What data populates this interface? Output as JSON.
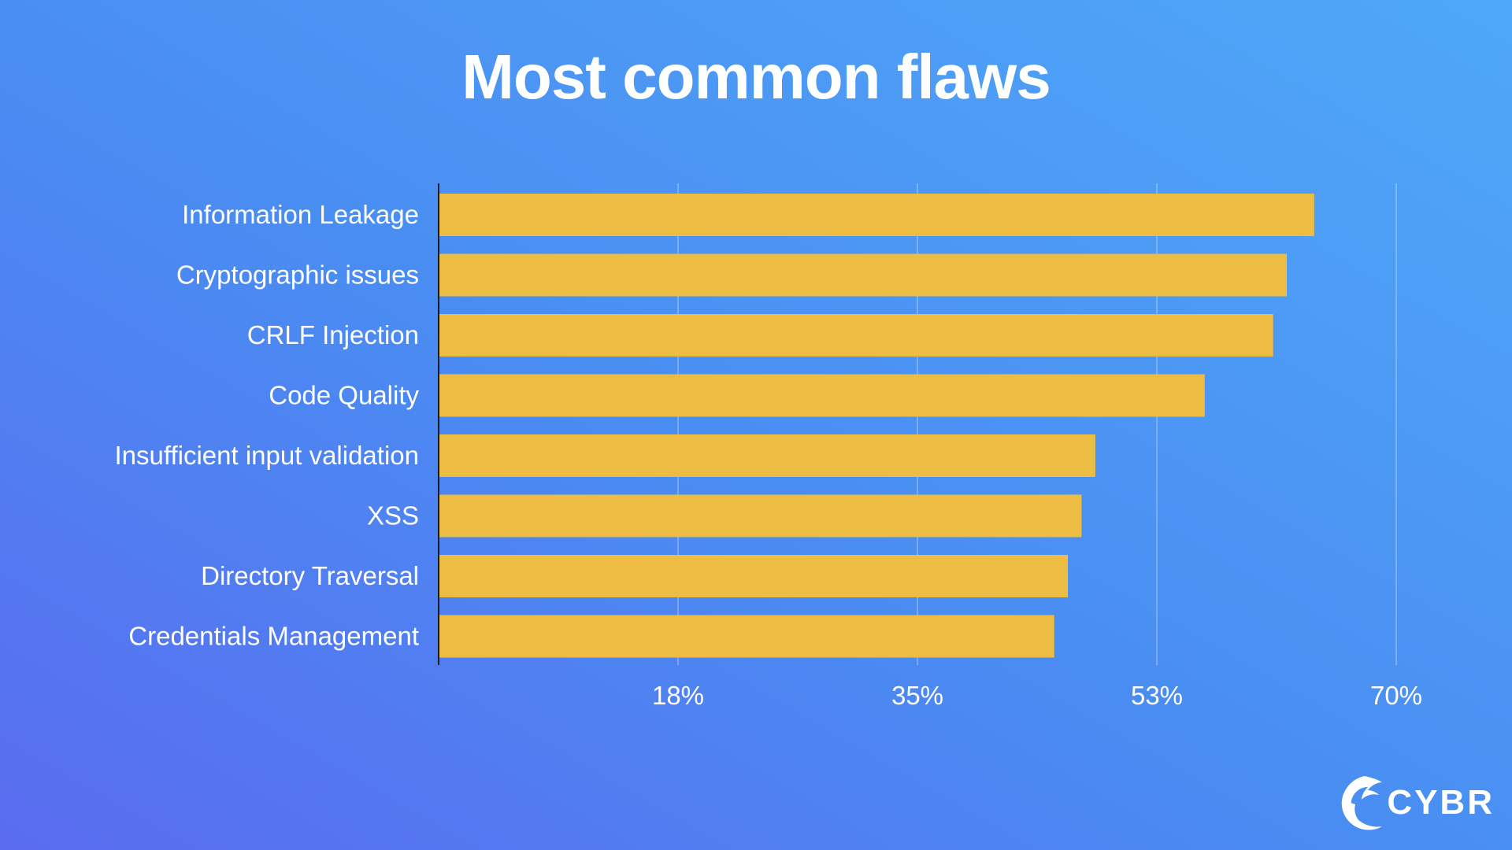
{
  "slide": {
    "title": "Most common flaws"
  },
  "logo": {
    "text": "CYBR",
    "icon": "phoenix-icon"
  },
  "colors": {
    "bar": "#ecbd42",
    "gridline": "rgba(255,255,255,0.35)",
    "axis": "#1a1a2e",
    "text": "#ffffff"
  },
  "chart_data": {
    "type": "bar",
    "orientation": "horizontal",
    "title": "Most common flaws",
    "categories": [
      "Information Leakage",
      "Cryptographic issues",
      "CRLF Injection",
      "Code Quality",
      "Insufficient input validation",
      "XSS",
      "Directory Traversal",
      "Credentials Management"
    ],
    "values": [
      64,
      62,
      61,
      56,
      48,
      47,
      46,
      45
    ],
    "x_ticks": [
      17.5,
      35,
      52.5,
      70
    ],
    "x_tick_labels": [
      "18%",
      "35%",
      "53%",
      "70%"
    ],
    "xlim": [
      0,
      70
    ],
    "grid": true,
    "legend": "none"
  }
}
